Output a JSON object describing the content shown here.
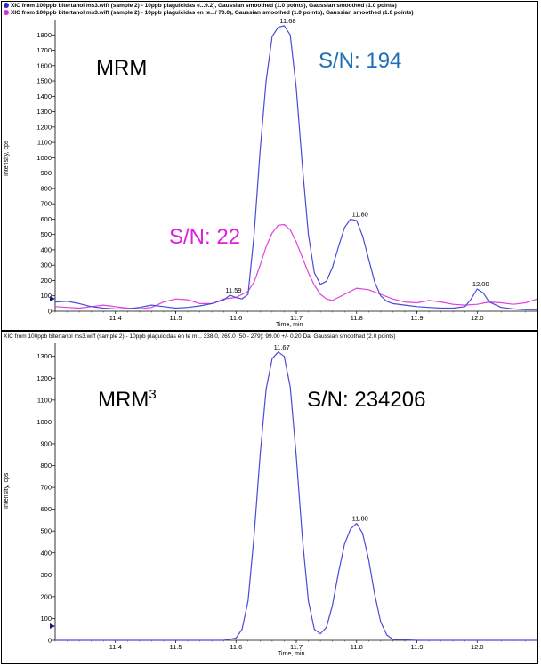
{
  "colors": {
    "blue": "#4a4ad8",
    "pink": "#e040e0",
    "sn_blue": "#1f6fb5",
    "sn_pink": "#e020e0",
    "text": "#000000"
  },
  "top_panel": {
    "legend_1": "XIC from 100ppb bitertanol ms3.wiff (sample 2) - 10ppb plaguicidas e...9.2), Gaussian smoothed (1.0 points), Gaussian smoothed (1.0 points)",
    "legend_2": "XIC from 100ppb bitertanol ms3.wiff (sample 2) - 10ppb plaguicidas en te.../ 70.0), Gaussian smoothed (1.0 points), Gaussian smoothed (1.0 points)",
    "method_label": "MRM",
    "sn_blue_label": "S/N: 194",
    "sn_pink_label": "S/N: 22",
    "ylabel": "Intensity, cps",
    "xlabel": "Time, min"
  },
  "bottom_panel": {
    "legend_1": "XIC from 100ppb bitertanol ms3.wiff (sample 2) - 10ppb plaguicidas en te m... 338.0, 269.0 (50 - 279): 99.00 +/- 0.20 Da, Gaussian smoothed (2.0 points)",
    "method_label": "MRM",
    "method_sup": "3",
    "sn_label": "S/N: 234206",
    "ylabel": "Intensity, cps",
    "xlabel": "Time, min"
  },
  "chart_data": [
    {
      "type": "line",
      "title": "MRM",
      "xlabel": "Time, min",
      "ylabel": "Intensity, cps",
      "xlim": [
        11.3,
        12.1
      ],
      "ylim": [
        0,
        1900
      ],
      "x_ticks": [
        "11.4",
        "11.5",
        "11.6",
        "11.7",
        "11.8",
        "11.9",
        "12.0"
      ],
      "y_ticks": [
        "0",
        "100",
        "200",
        "300",
        "400",
        "500",
        "600",
        "700",
        "800",
        "900",
        "1000",
        "1100",
        "1200",
        "1300",
        "1400",
        "1500",
        "1600",
        "1700",
        "1800"
      ],
      "series": [
        {
          "color": "#4a4ad8",
          "x": [
            11.3,
            11.32,
            11.34,
            11.36,
            11.38,
            11.4,
            11.42,
            11.44,
            11.46,
            11.48,
            11.5,
            11.52,
            11.54,
            11.56,
            11.58,
            11.59,
            11.6,
            11.61,
            11.62,
            11.63,
            11.64,
            11.65,
            11.66,
            11.67,
            11.68,
            11.69,
            11.7,
            11.71,
            11.72,
            11.73,
            11.74,
            11.75,
            11.76,
            11.77,
            11.78,
            11.79,
            11.8,
            11.81,
            11.82,
            11.83,
            11.84,
            11.85,
            11.86,
            11.88,
            11.9,
            11.92,
            11.94,
            11.96,
            11.98,
            11.99,
            12.0,
            12.01,
            12.02,
            12.04,
            12.06,
            12.08,
            12.1
          ],
          "y": [
            60,
            65,
            50,
            30,
            20,
            15,
            15,
            25,
            40,
            30,
            20,
            25,
            35,
            50,
            75,
            105,
            90,
            80,
            110,
            500,
            1050,
            1500,
            1790,
            1850,
            1860,
            1800,
            1450,
            950,
            500,
            250,
            175,
            195,
            285,
            420,
            545,
            600,
            590,
            490,
            340,
            190,
            100,
            65,
            50,
            40,
            30,
            25,
            20,
            20,
            30,
            80,
            145,
            120,
            60,
            25,
            15,
            10,
            10
          ],
          "peak_labels": [
            {
              "x": 11.59,
              "label": "11.59"
            },
            {
              "x": 11.68,
              "label": "11.68"
            },
            {
              "x": 11.8,
              "label": "11.80"
            },
            {
              "x": 12.0,
              "label": "12.00"
            }
          ]
        },
        {
          "color": "#e040e0",
          "x": [
            11.3,
            11.32,
            11.34,
            11.36,
            11.38,
            11.4,
            11.42,
            11.44,
            11.46,
            11.48,
            11.5,
            11.52,
            11.54,
            11.56,
            11.58,
            11.6,
            11.62,
            11.63,
            11.64,
            11.65,
            11.66,
            11.67,
            11.68,
            11.69,
            11.7,
            11.71,
            11.72,
            11.73,
            11.74,
            11.75,
            11.76,
            11.78,
            11.8,
            11.82,
            11.84,
            11.86,
            11.88,
            11.9,
            11.92,
            11.94,
            11.96,
            11.98,
            12.0,
            12.02,
            12.04,
            12.06,
            12.08,
            12.1
          ],
          "y": [
            30,
            25,
            20,
            30,
            40,
            30,
            20,
            15,
            25,
            60,
            80,
            75,
            50,
            50,
            80,
            90,
            130,
            190,
            300,
            420,
            510,
            560,
            565,
            530,
            450,
            350,
            250,
            170,
            110,
            80,
            70,
            110,
            150,
            140,
            110,
            80,
            60,
            55,
            70,
            60,
            45,
            40,
            45,
            60,
            55,
            45,
            55,
            80
          ]
        }
      ]
    },
    {
      "type": "line",
      "title": "MRM3",
      "xlabel": "Time, min",
      "ylabel": "Intensity, cps",
      "xlim": [
        11.3,
        12.1
      ],
      "ylim": [
        0,
        1360
      ],
      "x_ticks": [
        "11.4",
        "11.5",
        "11.6",
        "11.7",
        "11.8",
        "11.9",
        "12.0"
      ],
      "y_ticks": [
        "0",
        "100",
        "200",
        "300",
        "400",
        "500",
        "600",
        "700",
        "800",
        "900",
        "1000",
        "1100",
        "1200",
        "1300"
      ],
      "series": [
        {
          "color": "#4a4ad8",
          "x": [
            11.3,
            11.4,
            11.5,
            11.58,
            11.6,
            11.61,
            11.62,
            11.63,
            11.64,
            11.65,
            11.66,
            11.67,
            11.68,
            11.69,
            11.7,
            11.71,
            11.72,
            11.73,
            11.74,
            11.75,
            11.76,
            11.77,
            11.78,
            11.79,
            11.8,
            11.81,
            11.82,
            11.83,
            11.84,
            11.85,
            11.86,
            11.9,
            12.0,
            12.1
          ],
          "y": [
            0,
            0,
            0,
            0,
            10,
            50,
            180,
            480,
            850,
            1150,
            1290,
            1320,
            1300,
            1160,
            840,
            470,
            180,
            50,
            30,
            60,
            160,
            310,
            440,
            510,
            535,
            490,
            370,
            210,
            85,
            25,
            5,
            0,
            0,
            0
          ],
          "peak_labels": [
            {
              "x": 11.67,
              "label": "11.67"
            },
            {
              "x": 11.8,
              "label": "11.80"
            }
          ]
        }
      ]
    }
  ]
}
